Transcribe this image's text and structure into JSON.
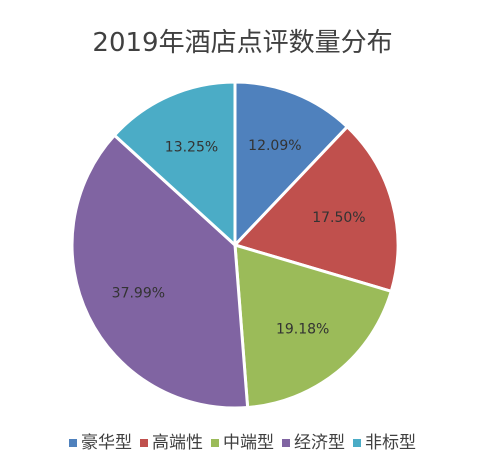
{
  "chart_data": {
    "type": "pie",
    "title": "2019年酒店点评数量分布",
    "categories": [
      "豪华型",
      "高端性",
      "中端型",
      "经济型",
      "非标型"
    ],
    "values": [
      12.09,
      17.5,
      19.18,
      37.99,
      13.25
    ],
    "labels": [
      "12.09%",
      "17.50%",
      "19.18%",
      "37.99%",
      "13.25%"
    ],
    "colors": [
      "#4F81BD",
      "#C0504D",
      "#9BBB59",
      "#8064A2",
      "#4BACC6"
    ],
    "legend_position": "bottom"
  }
}
